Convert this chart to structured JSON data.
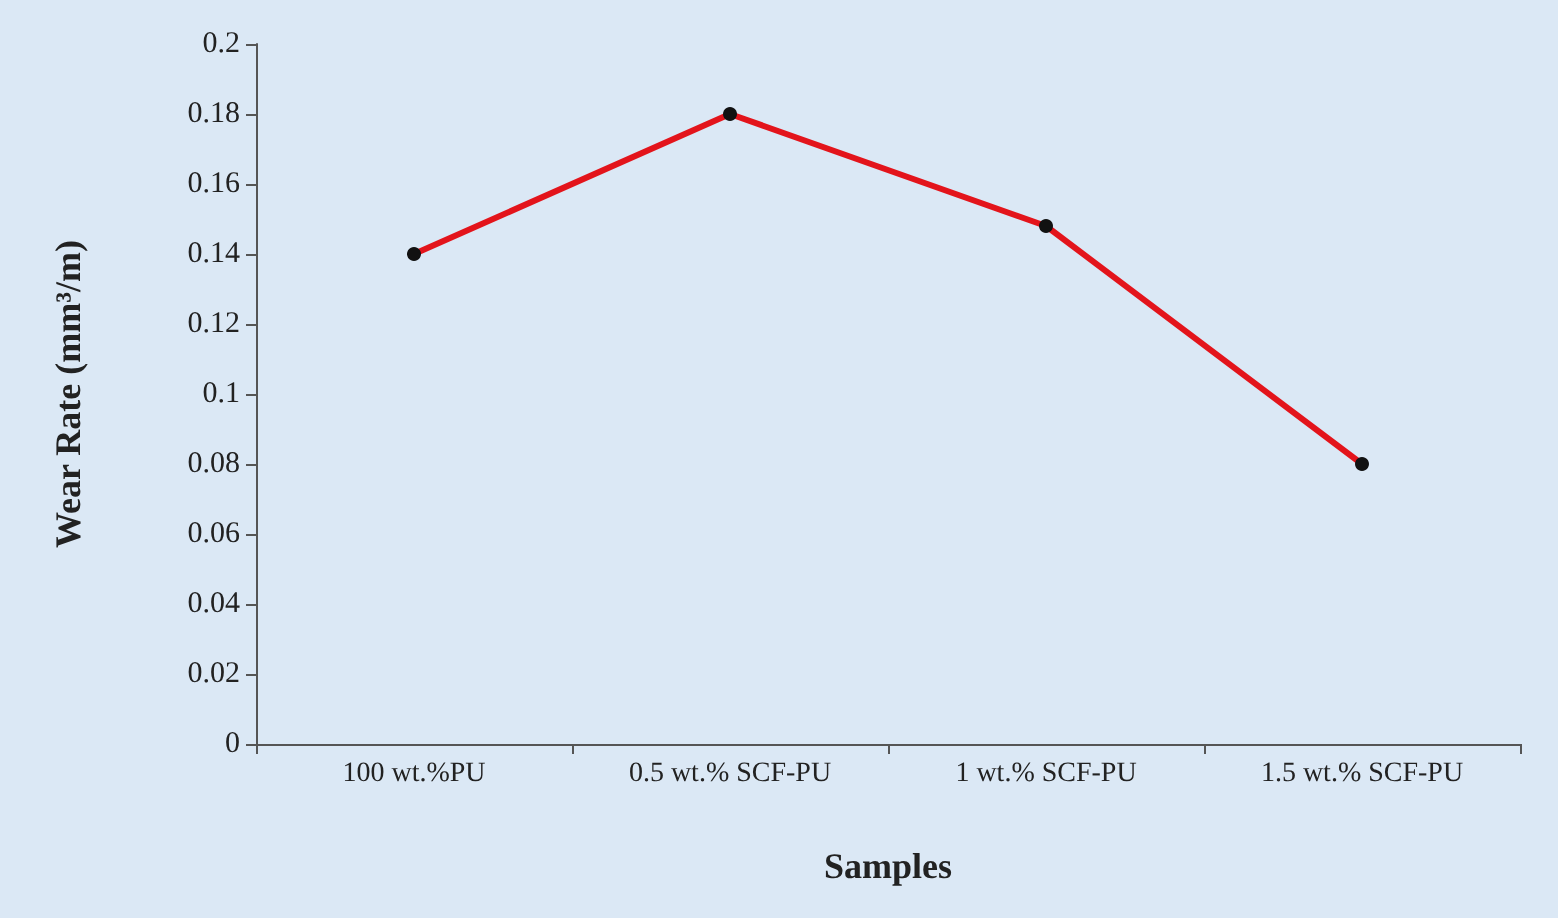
{
  "chart_data": {
    "type": "line",
    "xlabel": "Samples",
    "ylabel": "Wear Rate (mm³/m)",
    "categories": [
      "100 wt.%PU",
      "0.5 wt.% SCF-PU",
      "1 wt.% SCF-PU",
      "1.5 wt.% SCF-PU"
    ],
    "series": [
      {
        "color": "#e3141b",
        "values": [
          0.14,
          0.18,
          0.148,
          0.08
        ]
      }
    ],
    "ylim": [
      0,
      0.2
    ],
    "yticks": [
      0,
      0.02,
      0.04,
      0.06,
      0.08,
      0.1,
      0.12,
      0.14,
      0.16,
      0.18,
      0.2
    ],
    "marker": "circle",
    "line_style": "solid"
  }
}
